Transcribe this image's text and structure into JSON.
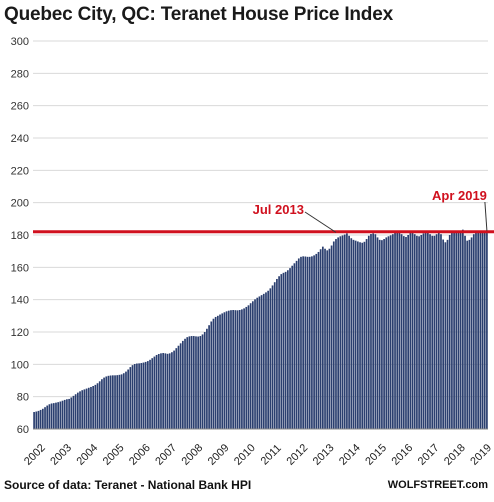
{
  "chart_data": {
    "type": "bar",
    "title": "Quebec City, QC: Teranet House Price Index",
    "xlabel": "",
    "ylabel": "",
    "ylim": [
      60,
      300
    ],
    "yticks": [
      60,
      80,
      100,
      120,
      140,
      160,
      180,
      200,
      220,
      240,
      260,
      280,
      300
    ],
    "xticks": [
      "2002",
      "2003",
      "2004",
      "2005",
      "2006",
      "2007",
      "2008",
      "2009",
      "2010",
      "2011",
      "2012",
      "2013",
      "2014",
      "2015",
      "2016",
      "2017",
      "2018",
      "2019"
    ],
    "grid": true,
    "bar_color": "#2b3f6f",
    "annotation_color": "#d0101e",
    "x_start": "2002-01",
    "x_end": "2019-04",
    "reference_line": {
      "value": 182
    },
    "annotations": [
      {
        "label": "Jul 2013",
        "date": "2013-07",
        "value": 181
      },
      {
        "label": "Apr 2019",
        "date": "2019-04",
        "value": 182
      }
    ],
    "yearly_values": [
      {
        "year": "2002",
        "values": [
          70.5,
          70.8,
          71.2,
          71.8,
          72.5,
          73.5,
          74.5,
          75.3,
          75.8,
          76,
          76.3,
          76.6
        ]
      },
      {
        "year": "2003",
        "values": [
          77,
          77.5,
          78,
          78.4,
          78.6,
          79.5,
          80.5,
          81.5,
          82.5,
          83.3,
          84,
          84.5
        ]
      },
      {
        "year": "2004",
        "values": [
          85,
          85.5,
          86,
          86.6,
          87.3,
          88.3,
          89.5,
          90.8,
          91.8,
          92.5,
          92.9,
          93.1
        ]
      },
      {
        "year": "2005",
        "values": [
          93.2,
          93.2,
          93.3,
          93.5,
          93.8,
          94.5,
          95.5,
          96.8,
          98.3,
          99.5,
          100.2,
          100.5
        ]
      },
      {
        "year": "2006",
        "values": [
          100.6,
          100.8,
          101.1,
          101.5,
          102,
          102.8,
          103.8,
          104.8,
          105.8,
          106.4,
          106.8,
          107
        ]
      },
      {
        "year": "2007",
        "values": [
          106.8,
          106.5,
          106.8,
          107.5,
          108.5,
          110,
          111.5,
          113,
          114.5,
          115.8,
          116.8,
          117.3
        ]
      },
      {
        "year": "2008",
        "values": [
          117.5,
          117.5,
          117.3,
          117.2,
          117.5,
          118.5,
          120,
          122,
          124.2,
          126.5,
          128.2,
          129.3
        ]
      },
      {
        "year": "2009",
        "values": [
          130,
          130.8,
          131.5,
          132.2,
          132.8,
          133.2,
          133.5,
          133.6,
          133.5,
          133.4,
          133.6,
          134
        ]
      },
      {
        "year": "2010",
        "values": [
          134.6,
          135.5,
          136.5,
          137.8,
          139,
          140.2,
          141.2,
          142,
          142.8,
          143.6,
          144.5,
          145.5
        ]
      },
      {
        "year": "2011",
        "values": [
          147,
          148.8,
          150.8,
          152.8,
          154.5,
          155.8,
          156.6,
          157.2,
          158.2,
          159.5,
          161,
          162.5
        ]
      },
      {
        "year": "2012",
        "values": [
          164,
          165.5,
          166.5,
          166.8,
          166.7,
          166.5,
          166.5,
          166.8,
          167.4,
          168.3,
          169.5,
          171.2
        ]
      },
      {
        "year": "2013",
        "values": [
          172.8,
          171.5,
          170.5,
          171.5,
          173.5,
          176,
          177.5,
          178.5,
          179.2,
          179.7,
          180.3,
          181
        ]
      },
      {
        "year": "2014",
        "values": [
          179.5,
          178,
          177,
          176.5,
          176,
          175.5,
          175.2,
          175.8,
          177.5,
          179.5,
          180.6,
          181
        ]
      },
      {
        "year": "2015",
        "values": [
          180.5,
          178.5,
          177,
          176.8,
          177.5,
          178.5,
          179.2,
          179.8,
          180.5,
          181.3,
          181.8,
          181.5
        ]
      },
      {
        "year": "2016",
        "values": [
          180.5,
          179.3,
          178.8,
          180,
          181.2,
          181.4,
          180.5,
          179.5,
          179.2,
          180,
          181,
          181.8
        ]
      },
      {
        "year": "2017",
        "values": [
          181.5,
          180.5,
          179.5,
          179.5,
          180.5,
          181.5,
          180.5,
          177.2,
          175.5,
          177,
          180,
          182
        ]
      },
      {
        "year": "2018",
        "values": [
          182.2,
          181.8,
          181.5,
          182.5,
          183.3,
          179.5,
          176.5,
          177,
          178.5,
          180.5,
          181.5,
          182.2
        ]
      },
      {
        "year": "2019",
        "values": [
          182.3,
          181.8,
          182.2,
          182.6
        ]
      }
    ]
  },
  "source_text": "Source of data: Teranet - National Bank HPI",
  "brand": "WOLFSTREET.com"
}
